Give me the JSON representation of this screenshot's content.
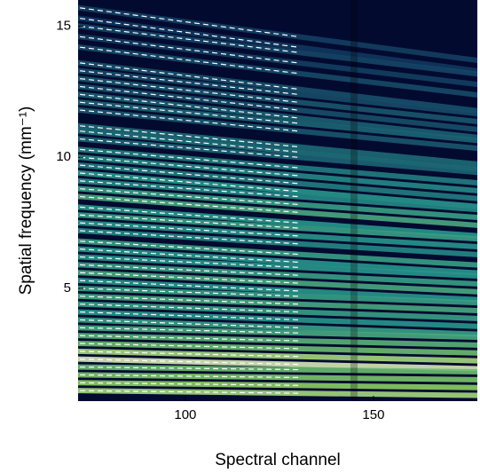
{
  "chart_data": {
    "type": "heatmap-lines",
    "xlabel": "Spectral channel",
    "ylabel": "Spatial frequency (mm⁻¹)",
    "xlim": [
      71.5,
      177.6
    ],
    "ylim": [
      0.7,
      16.0
    ],
    "xticks": [
      100,
      150
    ],
    "yticks": [
      5,
      10,
      15
    ],
    "background": "#030a30",
    "line_color": "#ffffff",
    "line_x": [
      72,
      130
    ],
    "lines": [
      [
        15.7,
        14.6
      ],
      [
        15.3,
        14.2
      ],
      [
        15.0,
        14.0
      ],
      [
        14.6,
        13.6
      ],
      [
        14.2,
        13.2
      ],
      [
        13.6,
        12.6
      ],
      [
        13.3,
        12.4
      ],
      [
        13.0,
        12.1
      ],
      [
        12.7,
        11.8
      ],
      [
        12.4,
        11.5
      ],
      [
        12.1,
        11.3
      ],
      [
        11.8,
        11.0
      ],
      [
        11.2,
        10.4
      ],
      [
        11.0,
        10.2
      ],
      [
        10.7,
        10.0
      ],
      [
        10.3,
        9.6
      ],
      [
        10.0,
        9.3
      ],
      [
        9.7,
        9.0
      ],
      [
        9.4,
        8.7
      ],
      [
        9.1,
        8.5
      ],
      [
        8.8,
        8.2
      ],
      [
        8.5,
        7.9
      ],
      [
        8.1,
        7.5
      ],
      [
        7.8,
        7.3
      ],
      [
        7.5,
        7.0
      ],
      [
        7.2,
        6.7
      ],
      [
        6.8,
        6.3
      ],
      [
        6.5,
        6.0
      ],
      [
        6.2,
        5.8
      ],
      [
        5.9,
        5.5
      ],
      [
        5.6,
        5.2
      ],
      [
        5.3,
        4.9
      ],
      [
        5.0,
        4.7
      ],
      [
        4.7,
        4.4
      ],
      [
        4.4,
        4.1
      ],
      [
        4.1,
        3.8
      ],
      [
        3.8,
        3.5
      ],
      [
        3.5,
        3.3
      ],
      [
        3.2,
        3.0
      ],
      [
        2.9,
        2.7
      ],
      [
        2.6,
        2.4
      ],
      [
        2.3,
        2.1
      ],
      [
        2.0,
        1.9
      ],
      [
        1.7,
        1.6
      ],
      [
        1.4,
        1.3
      ],
      [
        1.1,
        1.0
      ]
    ],
    "intensity": [
      0.15,
      0.12,
      0.18,
      0.15,
      0.2,
      0.22,
      0.2,
      0.25,
      0.22,
      0.28,
      0.3,
      0.25,
      0.32,
      0.35,
      0.3,
      0.4,
      0.45,
      0.4,
      0.5,
      0.45,
      0.55,
      0.6,
      0.5,
      0.55,
      0.5,
      0.45,
      0.55,
      0.5,
      0.5,
      0.55,
      0.6,
      0.5,
      0.55,
      0.6,
      0.55,
      0.5,
      0.55,
      0.6,
      0.65,
      0.7,
      0.85,
      0.95,
      0.7,
      0.75,
      0.8,
      0.85
    ]
  }
}
